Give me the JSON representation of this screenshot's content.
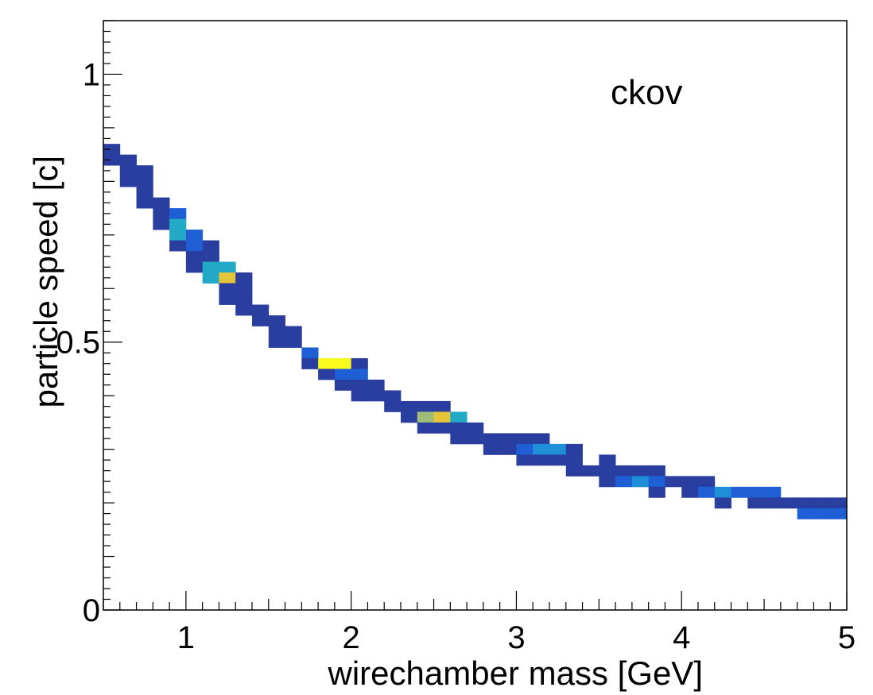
{
  "chart_data": {
    "type": "heatmap",
    "annotation": "ckov",
    "xlabel": "wirechamber mass [GeV]",
    "ylabel": "particle speed [c]",
    "xlim": [
      0.5,
      5.0
    ],
    "ylim": [
      0.0,
      1.1
    ],
    "x_ticks": [
      1,
      2,
      3,
      4,
      5
    ],
    "x_tick_labels": [
      "1",
      "2",
      "3",
      "4",
      "5"
    ],
    "y_ticks": [
      0,
      0.5,
      1
    ],
    "y_tick_labels": [
      "0",
      "0.5",
      "1"
    ],
    "bin_width": 0.1,
    "bin_height": 0.02,
    "palette": [
      "#2a3ea0",
      "#1f5fd6",
      "#1e8fd8",
      "#22a9c6",
      "#9fbc7a",
      "#e4c43a",
      "#fafa1e"
    ],
    "cells": [
      [
        0.55,
        0.86,
        0
      ],
      [
        0.55,
        0.84,
        0
      ],
      [
        0.65,
        0.84,
        0
      ],
      [
        0.65,
        0.82,
        0
      ],
      [
        0.65,
        0.8,
        0
      ],
      [
        0.75,
        0.82,
        0
      ],
      [
        0.75,
        0.8,
        0
      ],
      [
        0.75,
        0.78,
        0
      ],
      [
        0.75,
        0.76,
        0
      ],
      [
        0.85,
        0.76,
        0
      ],
      [
        0.85,
        0.74,
        0
      ],
      [
        0.85,
        0.72,
        0
      ],
      [
        0.95,
        0.74,
        1
      ],
      [
        0.95,
        0.72,
        3
      ],
      [
        0.95,
        0.7,
        3
      ],
      [
        0.95,
        0.68,
        0
      ],
      [
        1.05,
        0.7,
        1
      ],
      [
        1.05,
        0.68,
        1
      ],
      [
        1.05,
        0.66,
        0
      ],
      [
        1.05,
        0.64,
        0
      ],
      [
        1.15,
        0.68,
        0
      ],
      [
        1.15,
        0.66,
        0
      ],
      [
        1.15,
        0.64,
        3
      ],
      [
        1.15,
        0.62,
        3
      ],
      [
        1.25,
        0.64,
        3
      ],
      [
        1.25,
        0.62,
        5
      ],
      [
        1.25,
        0.6,
        0
      ],
      [
        1.25,
        0.58,
        0
      ],
      [
        1.35,
        0.62,
        0
      ],
      [
        1.35,
        0.6,
        0
      ],
      [
        1.35,
        0.58,
        0
      ],
      [
        1.35,
        0.56,
        0
      ],
      [
        1.45,
        0.56,
        0
      ],
      [
        1.45,
        0.54,
        0
      ],
      [
        1.55,
        0.54,
        0
      ],
      [
        1.55,
        0.52,
        0
      ],
      [
        1.55,
        0.5,
        0
      ],
      [
        1.65,
        0.52,
        0
      ],
      [
        1.65,
        0.5,
        0
      ],
      [
        1.75,
        0.48,
        1
      ],
      [
        1.75,
        0.46,
        0
      ],
      [
        1.85,
        0.46,
        6
      ],
      [
        1.85,
        0.44,
        0
      ],
      [
        1.95,
        0.46,
        6
      ],
      [
        1.95,
        0.44,
        1
      ],
      [
        1.95,
        0.42,
        0
      ],
      [
        2.05,
        0.46,
        0
      ],
      [
        2.05,
        0.44,
        1
      ],
      [
        2.05,
        0.42,
        0
      ],
      [
        2.05,
        0.4,
        0
      ],
      [
        2.15,
        0.42,
        0
      ],
      [
        2.15,
        0.4,
        0
      ],
      [
        2.25,
        0.4,
        0
      ],
      [
        2.25,
        0.38,
        0
      ],
      [
        2.35,
        0.38,
        0
      ],
      [
        2.35,
        0.36,
        0
      ],
      [
        2.45,
        0.38,
        0
      ],
      [
        2.45,
        0.36,
        4
      ],
      [
        2.45,
        0.34,
        0
      ],
      [
        2.55,
        0.38,
        0
      ],
      [
        2.55,
        0.36,
        5
      ],
      [
        2.55,
        0.34,
        0
      ],
      [
        2.65,
        0.36,
        3
      ],
      [
        2.65,
        0.34,
        0
      ],
      [
        2.65,
        0.32,
        0
      ],
      [
        2.75,
        0.34,
        0
      ],
      [
        2.75,
        0.32,
        0
      ],
      [
        2.85,
        0.32,
        0
      ],
      [
        2.85,
        0.3,
        0
      ],
      [
        2.95,
        0.32,
        0
      ],
      [
        2.95,
        0.3,
        0
      ],
      [
        3.05,
        0.32,
        0
      ],
      [
        3.05,
        0.3,
        1
      ],
      [
        3.05,
        0.28,
        0
      ],
      [
        3.15,
        0.32,
        0
      ],
      [
        3.15,
        0.3,
        2
      ],
      [
        3.15,
        0.28,
        0
      ],
      [
        3.25,
        0.3,
        2
      ],
      [
        3.25,
        0.28,
        0
      ],
      [
        3.35,
        0.3,
        0
      ],
      [
        3.35,
        0.28,
        0
      ],
      [
        3.35,
        0.26,
        0
      ],
      [
        3.45,
        0.26,
        0
      ],
      [
        3.55,
        0.28,
        0
      ],
      [
        3.55,
        0.26,
        0
      ],
      [
        3.55,
        0.24,
        0
      ],
      [
        3.65,
        0.26,
        0
      ],
      [
        3.65,
        0.24,
        1
      ],
      [
        3.75,
        0.26,
        0
      ],
      [
        3.75,
        0.24,
        2
      ],
      [
        3.85,
        0.26,
        0
      ],
      [
        3.85,
        0.24,
        1
      ],
      [
        3.85,
        0.22,
        0
      ],
      [
        3.95,
        0.24,
        0
      ],
      [
        4.05,
        0.24,
        0
      ],
      [
        4.05,
        0.22,
        0
      ],
      [
        4.15,
        0.24,
        0
      ],
      [
        4.15,
        0.22,
        1
      ],
      [
        4.25,
        0.22,
        2
      ],
      [
        4.25,
        0.2,
        0
      ],
      [
        4.35,
        0.22,
        1
      ],
      [
        4.45,
        0.22,
        1
      ],
      [
        4.45,
        0.2,
        0
      ],
      [
        4.55,
        0.22,
        1
      ],
      [
        4.55,
        0.2,
        0
      ],
      [
        4.65,
        0.2,
        0
      ],
      [
        4.75,
        0.2,
        0
      ],
      [
        4.75,
        0.18,
        1
      ],
      [
        4.85,
        0.2,
        0
      ],
      [
        4.85,
        0.18,
        1
      ],
      [
        4.95,
        0.2,
        0
      ],
      [
        4.95,
        0.18,
        1
      ]
    ]
  }
}
